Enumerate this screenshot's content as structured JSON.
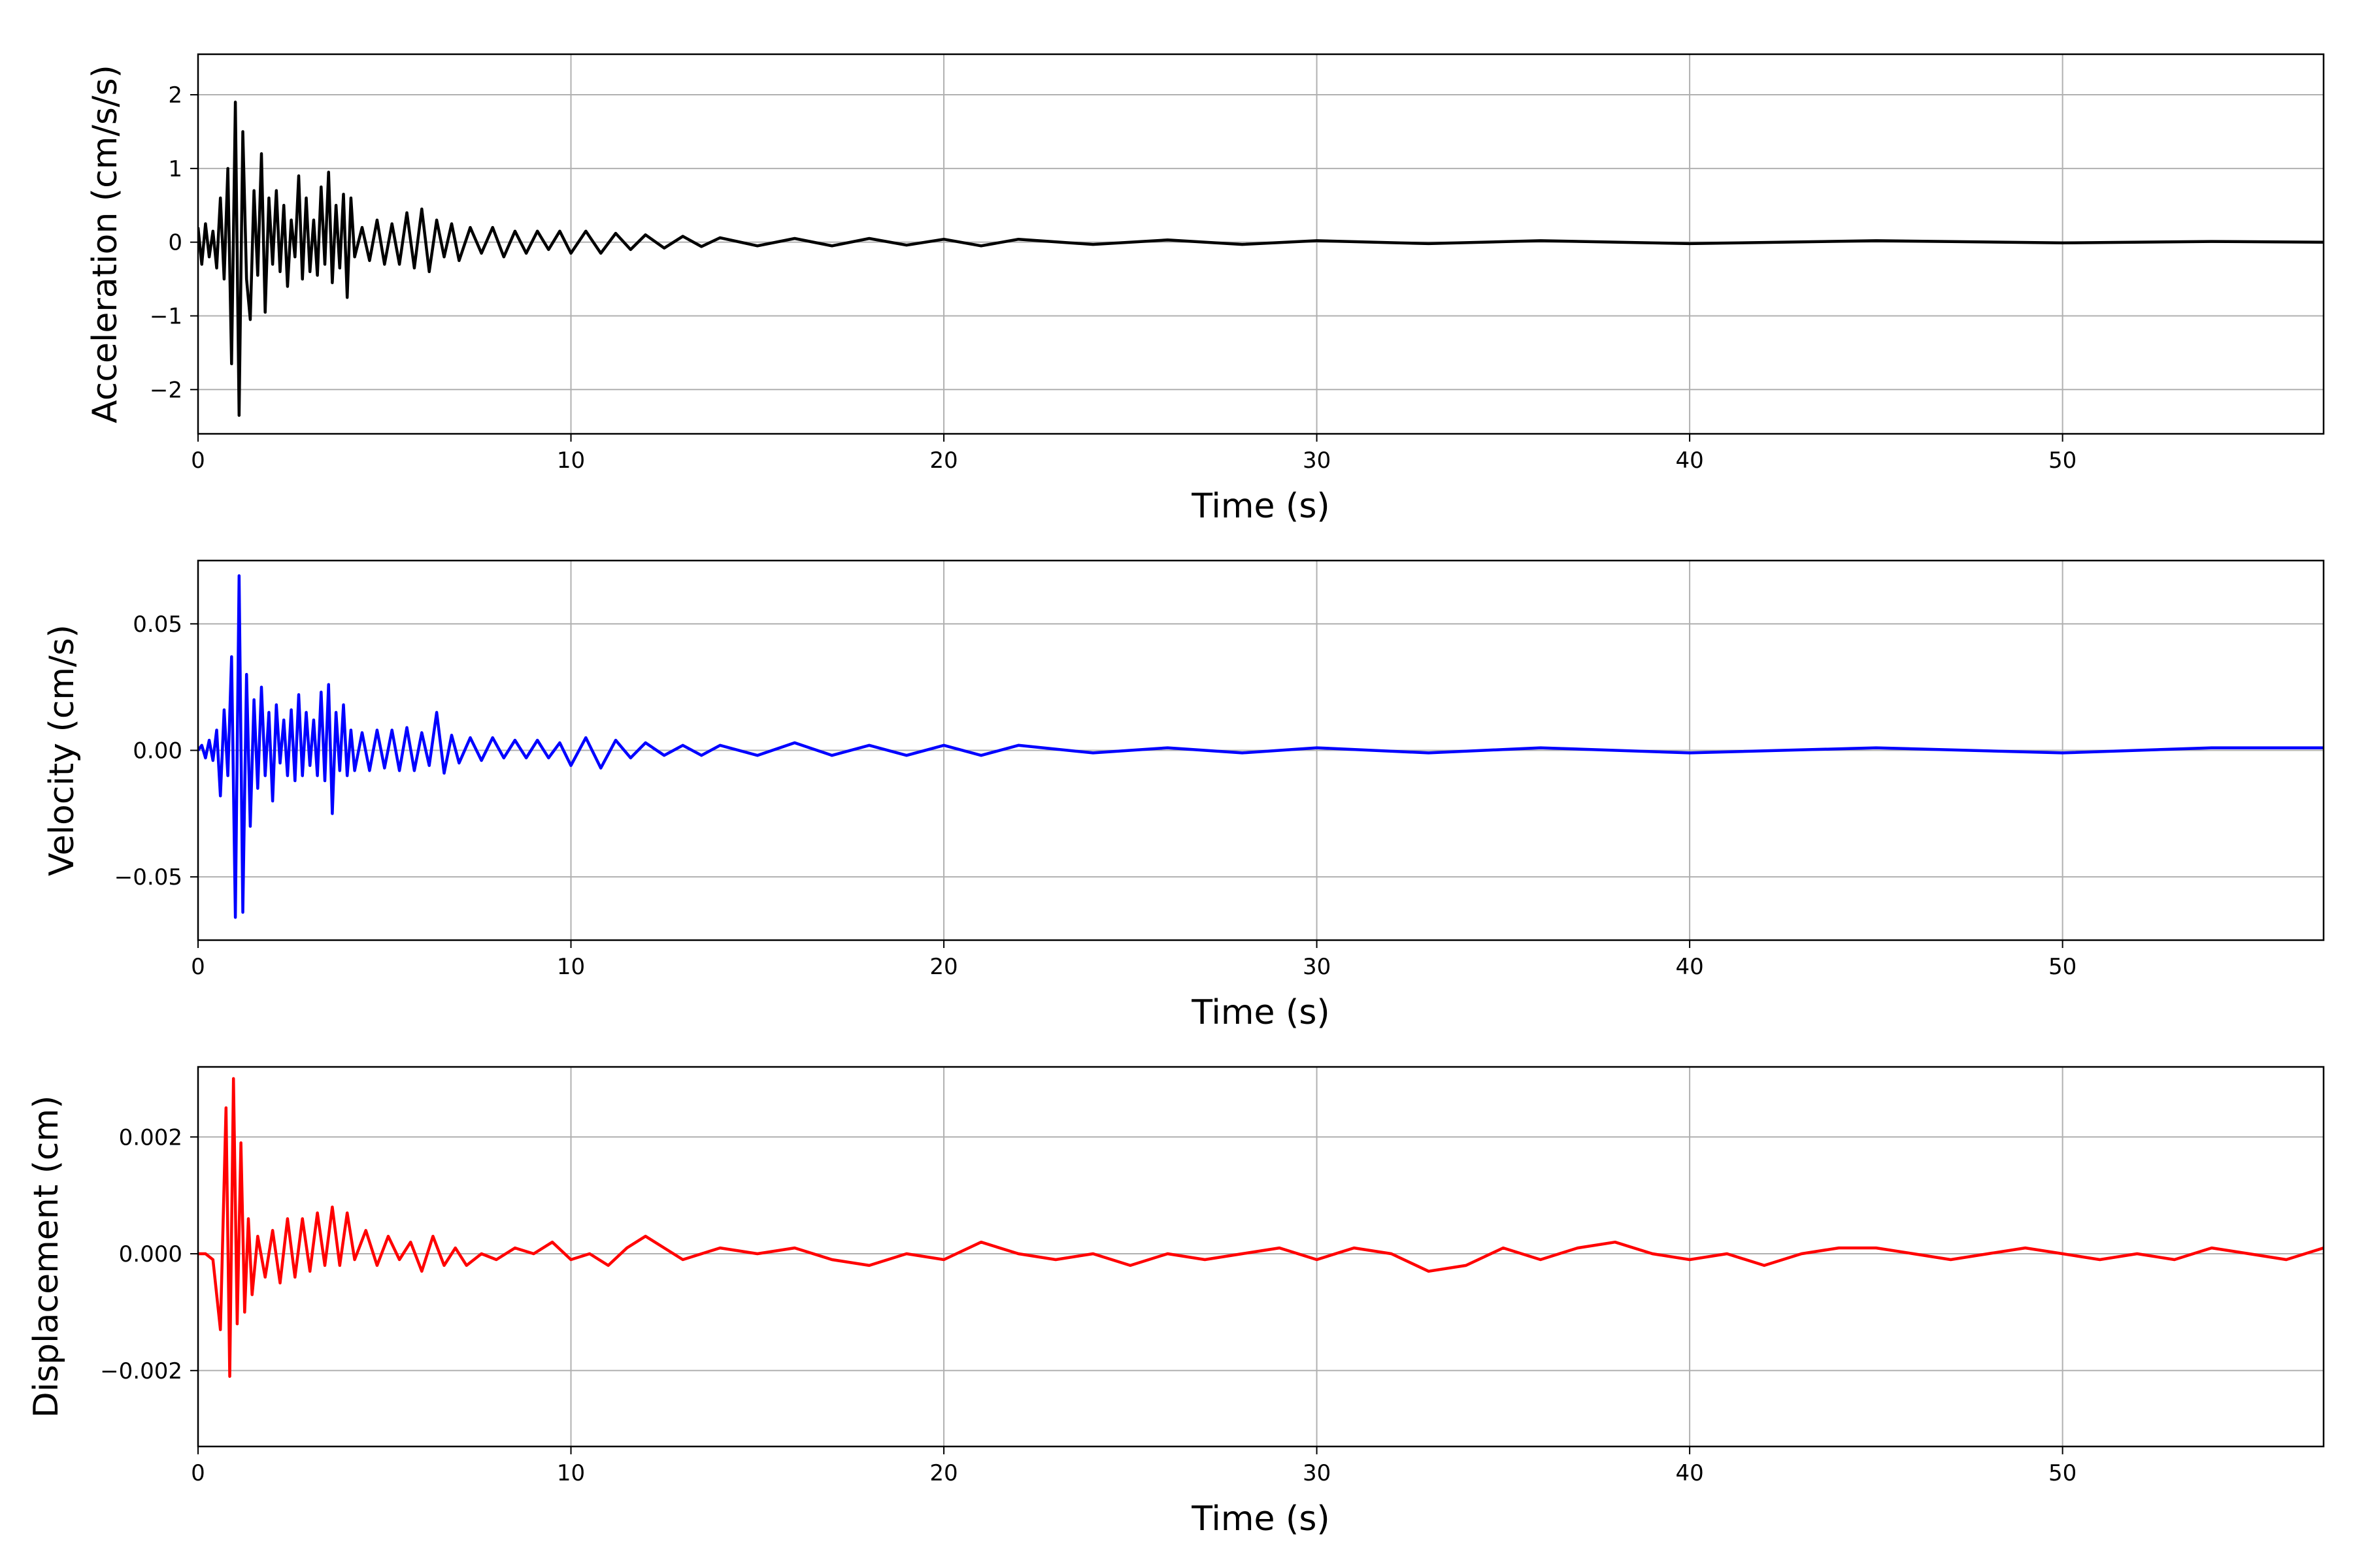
{
  "chart_data": [
    {
      "type": "line",
      "title": "",
      "xlabel": "Time (s)",
      "ylabel": "Acceleration (cm/s/s)",
      "xlim": [
        0,
        57
      ],
      "ylim": [
        -2.6,
        2.55
      ],
      "xticks": [
        0,
        10,
        20,
        30,
        40,
        50
      ],
      "xtick_labels": [
        "0",
        "10",
        "20",
        "30",
        "40",
        "50"
      ],
      "yticks": [
        2,
        1,
        0,
        -1,
        -2
      ],
      "ytick_labels": [
        "2",
        "1",
        "0",
        "−1",
        "−2"
      ],
      "grid": true,
      "legend": "none",
      "series": [
        {
          "color": "#000000",
          "x": [
            0,
            0.1,
            0.2,
            0.3,
            0.4,
            0.5,
            0.6,
            0.7,
            0.8,
            0.9,
            1.0,
            1.1,
            1.2,
            1.3,
            1.4,
            1.5,
            1.6,
            1.7,
            1.8,
            1.9,
            2.0,
            2.1,
            2.2,
            2.3,
            2.4,
            2.5,
            2.6,
            2.7,
            2.8,
            2.9,
            3.0,
            3.1,
            3.2,
            3.3,
            3.4,
            3.5,
            3.6,
            3.7,
            3.8,
            3.9,
            4.0,
            4.1,
            4.2,
            4.4,
            4.6,
            4.8,
            5.0,
            5.2,
            5.4,
            5.6,
            5.8,
            6.0,
            6.2,
            6.4,
            6.6,
            6.8,
            7.0,
            7.3,
            7.6,
            7.9,
            8.2,
            8.5,
            8.8,
            9.1,
            9.4,
            9.7,
            10.0,
            10.4,
            10.8,
            11.2,
            11.6,
            12.0,
            12.5,
            13.0,
            13.5,
            14.0,
            15.0,
            16.0,
            17.0,
            18.0,
            19.0,
            20.0,
            21.0,
            22.0,
            24.0,
            26.0,
            28.0,
            30.0,
            33.0,
            36.0,
            40.0,
            45.0,
            50.0,
            54.0,
            57.0
          ],
          "y": [
            0.2,
            -0.3,
            0.25,
            -0.2,
            0.15,
            -0.35,
            0.6,
            -0.5,
            1.0,
            -1.65,
            1.9,
            -2.35,
            1.5,
            -0.5,
            -1.05,
            0.7,
            -0.45,
            1.2,
            -0.95,
            0.6,
            -0.3,
            0.7,
            -0.4,
            0.5,
            -0.6,
            0.3,
            -0.2,
            0.9,
            -0.5,
            0.6,
            -0.4,
            0.3,
            -0.45,
            0.75,
            -0.3,
            0.95,
            -0.55,
            0.5,
            -0.35,
            0.65,
            -0.75,
            0.6,
            -0.2,
            0.2,
            -0.25,
            0.3,
            -0.3,
            0.25,
            -0.3,
            0.4,
            -0.35,
            0.45,
            -0.4,
            0.3,
            -0.2,
            0.25,
            -0.25,
            0.2,
            -0.15,
            0.2,
            -0.2,
            0.15,
            -0.15,
            0.15,
            -0.1,
            0.15,
            -0.15,
            0.15,
            -0.15,
            0.12,
            -0.1,
            0.1,
            -0.08,
            0.08,
            -0.06,
            0.06,
            -0.05,
            0.05,
            -0.05,
            0.05,
            -0.04,
            0.04,
            -0.05,
            0.04,
            -0.03,
            0.03,
            -0.03,
            0.02,
            -0.02,
            0.02,
            -0.02,
            0.02,
            -0.01,
            0.01,
            0.0
          ]
        }
      ]
    },
    {
      "type": "line",
      "title": "",
      "xlabel": "Time (s)",
      "ylabel": "Velocity (cm/s)",
      "xlim": [
        0,
        57
      ],
      "ylim": [
        -0.075,
        0.075
      ],
      "xticks": [
        0,
        10,
        20,
        30,
        40,
        50
      ],
      "xtick_labels": [
        "0",
        "10",
        "20",
        "30",
        "40",
        "50"
      ],
      "yticks": [
        0.05,
        0.0,
        -0.05
      ],
      "ytick_labels": [
        "0.05",
        "0.00",
        "−0.05"
      ],
      "grid": true,
      "legend": "none",
      "series": [
        {
          "color": "#0000ff",
          "x": [
            0,
            0.1,
            0.2,
            0.3,
            0.4,
            0.5,
            0.6,
            0.7,
            0.8,
            0.9,
            1.0,
            1.1,
            1.2,
            1.3,
            1.4,
            1.5,
            1.6,
            1.7,
            1.8,
            1.9,
            2.0,
            2.1,
            2.2,
            2.3,
            2.4,
            2.5,
            2.6,
            2.7,
            2.8,
            2.9,
            3.0,
            3.1,
            3.2,
            3.3,
            3.4,
            3.5,
            3.6,
            3.7,
            3.8,
            3.9,
            4.0,
            4.1,
            4.2,
            4.4,
            4.6,
            4.8,
            5.0,
            5.2,
            5.4,
            5.6,
            5.8,
            6.0,
            6.2,
            6.4,
            6.6,
            6.8,
            7.0,
            7.3,
            7.6,
            7.9,
            8.2,
            8.5,
            8.8,
            9.1,
            9.4,
            9.7,
            10.0,
            10.4,
            10.8,
            11.2,
            11.6,
            12.0,
            12.5,
            13.0,
            13.5,
            14.0,
            15.0,
            16.0,
            17.0,
            18.0,
            19.0,
            20.0,
            21.0,
            22.0,
            24.0,
            26.0,
            28.0,
            30.0,
            33.0,
            36.0,
            40.0,
            45.0,
            50.0,
            54.0,
            57.0
          ],
          "y": [
            0.0,
            0.002,
            -0.003,
            0.004,
            -0.004,
            0.008,
            -0.018,
            0.016,
            -0.01,
            0.037,
            -0.066,
            0.069,
            -0.064,
            0.03,
            -0.03,
            0.02,
            -0.015,
            0.025,
            -0.01,
            0.015,
            -0.02,
            0.018,
            -0.005,
            0.012,
            -0.01,
            0.016,
            -0.012,
            0.022,
            -0.01,
            0.015,
            -0.006,
            0.012,
            -0.01,
            0.023,
            -0.012,
            0.026,
            -0.025,
            0.015,
            -0.008,
            0.018,
            -0.01,
            0.008,
            -0.008,
            0.007,
            -0.008,
            0.008,
            -0.007,
            0.008,
            -0.008,
            0.009,
            -0.008,
            0.007,
            -0.006,
            0.015,
            -0.009,
            0.006,
            -0.005,
            0.005,
            -0.004,
            0.005,
            -0.003,
            0.004,
            -0.003,
            0.004,
            -0.003,
            0.003,
            -0.006,
            0.005,
            -0.007,
            0.004,
            -0.003,
            0.003,
            -0.002,
            0.002,
            -0.002,
            0.002,
            -0.002,
            0.003,
            -0.002,
            0.002,
            -0.002,
            0.002,
            -0.002,
            0.002,
            -0.001,
            0.001,
            -0.001,
            0.001,
            -0.001,
            0.001,
            -0.001,
            0.001,
            -0.001,
            0.001,
            0.001
          ]
        }
      ]
    },
    {
      "type": "line",
      "title": "",
      "xlabel": "Time (s)",
      "ylabel": "Displacement (cm)",
      "xlim": [
        0,
        57
      ],
      "ylim": [
        -0.0033,
        0.0032
      ],
      "xticks": [
        0,
        10,
        20,
        30,
        40,
        50
      ],
      "xtick_labels": [
        "0",
        "10",
        "20",
        "30",
        "40",
        "50"
      ],
      "yticks": [
        0.002,
        0.0,
        -0.002
      ],
      "ytick_labels": [
        "0.002",
        "0.000",
        "−0.002"
      ],
      "grid": true,
      "legend": "none",
      "series": [
        {
          "color": "#ff0000",
          "x": [
            0,
            0.2,
            0.4,
            0.6,
            0.75,
            0.85,
            0.95,
            1.05,
            1.15,
            1.25,
            1.35,
            1.45,
            1.6,
            1.8,
            2.0,
            2.2,
            2.4,
            2.6,
            2.8,
            3.0,
            3.2,
            3.4,
            3.6,
            3.8,
            4.0,
            4.2,
            4.5,
            4.8,
            5.1,
            5.4,
            5.7,
            6.0,
            6.3,
            6.6,
            6.9,
            7.2,
            7.6,
            8.0,
            8.5,
            9.0,
            9.5,
            10.0,
            10.5,
            11.0,
            11.5,
            12.0,
            13.0,
            14.0,
            15.0,
            16.0,
            17.0,
            18.0,
            19.0,
            20.0,
            21.0,
            22.0,
            23.0,
            24.0,
            25.0,
            26.0,
            27.0,
            28.0,
            29.0,
            30.0,
            31.0,
            32.0,
            33.0,
            34.0,
            35.0,
            36.0,
            37.0,
            38.0,
            39.0,
            40.0,
            41.0,
            42.0,
            43.0,
            44.0,
            45.0,
            46.0,
            47.0,
            48.0,
            49.0,
            50.0,
            51.0,
            52.0,
            53.0,
            54.0,
            55.0,
            56.0,
            57.0
          ],
          "y": [
            0.0,
            0.0,
            -0.0001,
            -0.0013,
            0.0025,
            -0.0021,
            0.003,
            -0.0012,
            0.0019,
            -0.001,
            0.0006,
            -0.0007,
            0.0003,
            -0.0004,
            0.0004,
            -0.0005,
            0.0006,
            -0.0004,
            0.0006,
            -0.0003,
            0.0007,
            -0.0002,
            0.0008,
            -0.0002,
            0.0007,
            -0.0001,
            0.0004,
            -0.0002,
            0.0003,
            -0.0001,
            0.0002,
            -0.0003,
            0.0003,
            -0.0002,
            0.0001,
            -0.0002,
            0.0,
            -0.0001,
            0.0001,
            0.0,
            0.0002,
            -0.0001,
            0.0,
            -0.0002,
            0.0001,
            0.0003,
            -0.0001,
            0.0001,
            0.0,
            0.0001,
            -0.0001,
            -0.0002,
            0.0,
            -0.0001,
            0.0002,
            0.0,
            -0.0001,
            0.0,
            -0.0002,
            0.0,
            -0.0001,
            0.0,
            0.0001,
            -0.0001,
            0.0001,
            0.0,
            -0.0003,
            -0.0002,
            0.0001,
            -0.0001,
            0.0001,
            0.0002,
            0.0,
            -0.0001,
            0.0,
            -0.0002,
            0.0,
            0.0001,
            0.0001,
            0.0,
            -0.0001,
            0.0,
            0.0001,
            0.0,
            -0.0001,
            0.0,
            -0.0001,
            0.0001,
            0.0,
            -0.0001,
            0.0001
          ]
        }
      ]
    }
  ]
}
